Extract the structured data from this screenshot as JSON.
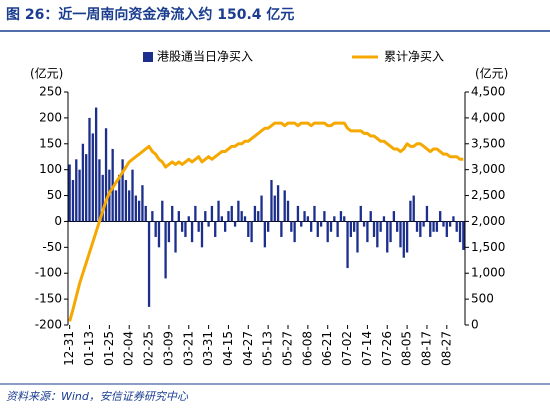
{
  "chart_data": {
    "type": "bar_line",
    "title": "图 26：近一周南向资金净流入约 150.4 亿元",
    "source": "资料来源：Wind，安信证券研究中心",
    "y_label": "(亿元)",
    "y2_label": "(亿元)",
    "categories": [
      "12-31",
      null,
      null,
      null,
      null,
      null,
      "01-13",
      null,
      null,
      null,
      null,
      null,
      "01-25",
      null,
      null,
      null,
      null,
      null,
      "02-04",
      null,
      null,
      null,
      null,
      null,
      "02-25",
      null,
      null,
      null,
      null,
      null,
      "03-09",
      null,
      null,
      null,
      null,
      null,
      "03-21",
      null,
      null,
      null,
      null,
      null,
      "03-31",
      null,
      null,
      null,
      null,
      null,
      "04-15",
      null,
      null,
      null,
      null,
      null,
      "04-27",
      null,
      null,
      null,
      null,
      null,
      "05-13",
      null,
      null,
      null,
      null,
      null,
      "05-27",
      null,
      null,
      null,
      null,
      null,
      "06-08",
      null,
      null,
      null,
      null,
      null,
      "06-21",
      null,
      null,
      null,
      null,
      null,
      "07-02",
      null,
      null,
      null,
      null,
      null,
      "07-14",
      null,
      null,
      null,
      null,
      null,
      "07-26",
      null,
      null,
      null,
      null,
      null,
      "08-05",
      null,
      null,
      null,
      null,
      null,
      "08-17",
      null,
      null,
      null,
      null,
      null,
      "08-27",
      null,
      null,
      null,
      null,
      null
    ],
    "series": [
      {
        "name": "港股通当日净买入",
        "color": "#1c2f8c",
        "kind": "bar",
        "values": [
          110,
          80,
          120,
          100,
          150,
          130,
          200,
          170,
          220,
          120,
          90,
          180,
          100,
          140,
          60,
          90,
          120,
          80,
          60,
          100,
          50,
          40,
          70,
          30,
          -165,
          20,
          -30,
          -50,
          40,
          -110,
          -40,
          30,
          -60,
          20,
          -20,
          -30,
          10,
          -40,
          30,
          -20,
          -50,
          20,
          -10,
          30,
          -30,
          40,
          10,
          -20,
          20,
          30,
          -10,
          40,
          20,
          10,
          -30,
          -40,
          30,
          20,
          50,
          -50,
          -20,
          80,
          50,
          70,
          -30,
          60,
          40,
          -20,
          -40,
          30,
          -10,
          20,
          10,
          -20,
          30,
          -30,
          -10,
          20,
          -40,
          -20,
          10,
          -30,
          20,
          10,
          -90,
          -30,
          -20,
          -60,
          30,
          -10,
          -40,
          20,
          -30,
          -50,
          -20,
          10,
          -60,
          -40,
          20,
          -20,
          -50,
          -70,
          -60,
          40,
          50,
          -20,
          -30,
          -10,
          30,
          -30,
          -20,
          -20,
          20,
          -10,
          -30,
          -10,
          10,
          -20,
          -40,
          -55
        ]
      },
      {
        "name": "累计净买入",
        "color": "#f5a800",
        "kind": "line",
        "axis": "y2",
        "values": [
          70,
          300,
          550,
          800,
          1000,
          1200,
          1400,
          1600,
          1800,
          2000,
          2200,
          2400,
          2550,
          2650,
          2750,
          2850,
          2950,
          3050,
          3150,
          3200,
          3250,
          3300,
          3350,
          3400,
          3450,
          3350,
          3300,
          3200,
          3150,
          3050,
          3100,
          3150,
          3100,
          3150,
          3100,
          3150,
          3200,
          3150,
          3200,
          3250,
          3150,
          3200,
          3250,
          3200,
          3250,
          3300,
          3350,
          3350,
          3400,
          3450,
          3450,
          3500,
          3500,
          3550,
          3550,
          3600,
          3650,
          3700,
          3750,
          3800,
          3800,
          3850,
          3900,
          3900,
          3900,
          3850,
          3900,
          3900,
          3900,
          3850,
          3900,
          3900,
          3900,
          3850,
          3900,
          3900,
          3900,
          3900,
          3850,
          3850,
          3900,
          3900,
          3900,
          3900,
          3800,
          3750,
          3750,
          3750,
          3750,
          3700,
          3700,
          3650,
          3650,
          3600,
          3550,
          3550,
          3500,
          3450,
          3400,
          3400,
          3350,
          3400,
          3500,
          3450,
          3450,
          3500,
          3500,
          3450,
          3400,
          3350,
          3400,
          3400,
          3350,
          3300,
          3300,
          3250,
          3250,
          3250,
          3200,
          3200
        ]
      }
    ],
    "ylim": [
      -200,
      250
    ],
    "yticks": [
      -200,
      -150,
      -100,
      -50,
      0,
      50,
      100,
      150,
      200,
      250
    ],
    "y2lim": [
      0,
      4500
    ],
    "y2ticks": [
      0,
      500,
      {
        "value": 1000,
        "label": "1,000"
      },
      {
        "value": 1500,
        "label": "1,500"
      },
      {
        "value": 2000,
        "label": "2,000"
      },
      {
        "value": 2500,
        "label": "2,500"
      },
      {
        "value": 3000,
        "label": "3,000"
      },
      {
        "value": 3500,
        "label": "3,500"
      },
      {
        "value": 4000,
        "label": "4,000"
      },
      {
        "value": 4500,
        "label": "4,500"
      }
    ],
    "legend": "top",
    "grid": false
  }
}
